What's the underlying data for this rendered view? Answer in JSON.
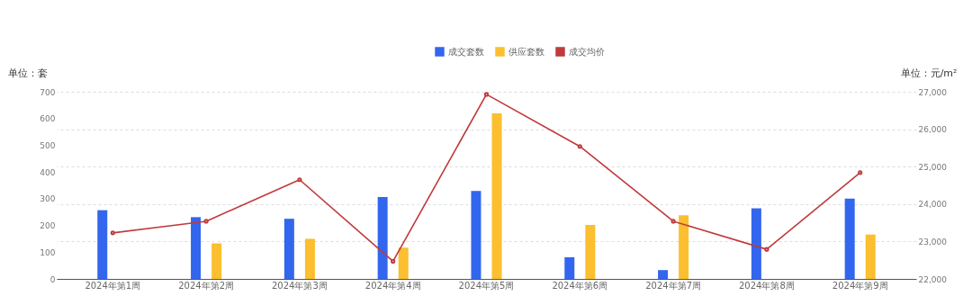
{
  "chart_data": {
    "type": "bar",
    "categories": [
      "2024年第1周",
      "2024年第2周",
      "2024年第3周",
      "2024年第4周",
      "2024年第5周",
      "2024年第6周",
      "2024年第7周",
      "2024年第8周",
      "2024年第9周"
    ],
    "series": [
      {
        "name": "成交套数",
        "color": "#3366ee",
        "values": [
          257,
          231,
          225,
          306,
          329,
          81,
          33,
          264,
          300
        ]
      },
      {
        "name": "供应套数",
        "color": "#fbbf2f",
        "values": [
          null,
          133,
          150,
          117,
          619,
          202,
          238,
          null,
          166
        ]
      },
      {
        "name": "成交均价",
        "type": "line",
        "axis": "y2",
        "color": "#c0393b",
        "values": [
          23230,
          23540,
          24650,
          22470,
          26930,
          25540,
          23540,
          22790,
          24840
        ]
      }
    ],
    "ylabel": "单位：套",
    "y2label": "单位：元/m²",
    "ylim": [
      0,
      700
    ],
    "yticks": [
      0,
      100,
      200,
      300,
      400,
      500,
      600,
      700
    ],
    "y2lim": [
      22000,
      27000
    ],
    "y2ticks": [
      {
        "value": 22000,
        "label": "22,000"
      },
      {
        "value": 23000,
        "label": "23,000"
      },
      {
        "value": 24000,
        "label": "24,000"
      },
      {
        "value": 25000,
        "label": "25,000"
      },
      {
        "value": 26000,
        "label": "26,000"
      },
      {
        "value": 27000,
        "label": "27,000"
      }
    ],
    "grid": true,
    "legend": "top",
    "marker": "circle",
    "line_style": "solid"
  }
}
